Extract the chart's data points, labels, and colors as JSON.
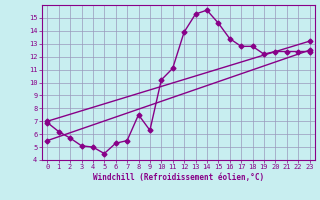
{
  "xlabel": "Windchill (Refroidissement éolien,°C)",
  "bg_color": "#c8eef0",
  "grid_color": "#9999bb",
  "line_color": "#880088",
  "xlim": [
    -0.5,
    23.5
  ],
  "ylim": [
    4,
    16
  ],
  "xticks": [
    0,
    1,
    2,
    3,
    4,
    5,
    6,
    7,
    8,
    9,
    10,
    11,
    12,
    13,
    14,
    15,
    16,
    17,
    18,
    19,
    20,
    21,
    22,
    23
  ],
  "yticks": [
    4,
    5,
    6,
    7,
    8,
    9,
    10,
    11,
    12,
    13,
    14,
    15
  ],
  "curve1_x": [
    0,
    1,
    2,
    3,
    4,
    5,
    6,
    7,
    8,
    9,
    10,
    11,
    12,
    13,
    14,
    15,
    16,
    17,
    18,
    19,
    20,
    21,
    22,
    23
  ],
  "curve1_y": [
    6.9,
    6.2,
    5.7,
    5.1,
    5.0,
    4.5,
    5.3,
    5.5,
    7.5,
    6.3,
    10.2,
    11.1,
    13.9,
    15.3,
    15.6,
    14.6,
    13.4,
    12.8,
    12.8,
    12.2,
    12.4,
    12.4,
    12.4,
    12.4
  ],
  "curve2_x": [
    0,
    23
  ],
  "curve2_y": [
    5.5,
    12.5
  ],
  "curve3_x": [
    0,
    23
  ],
  "curve3_y": [
    7.0,
    13.2
  ],
  "marker": "D",
  "markersize": 2.5,
  "linewidth": 1.0,
  "tick_fontsize": 5.0,
  "xlabel_fontsize": 5.5
}
